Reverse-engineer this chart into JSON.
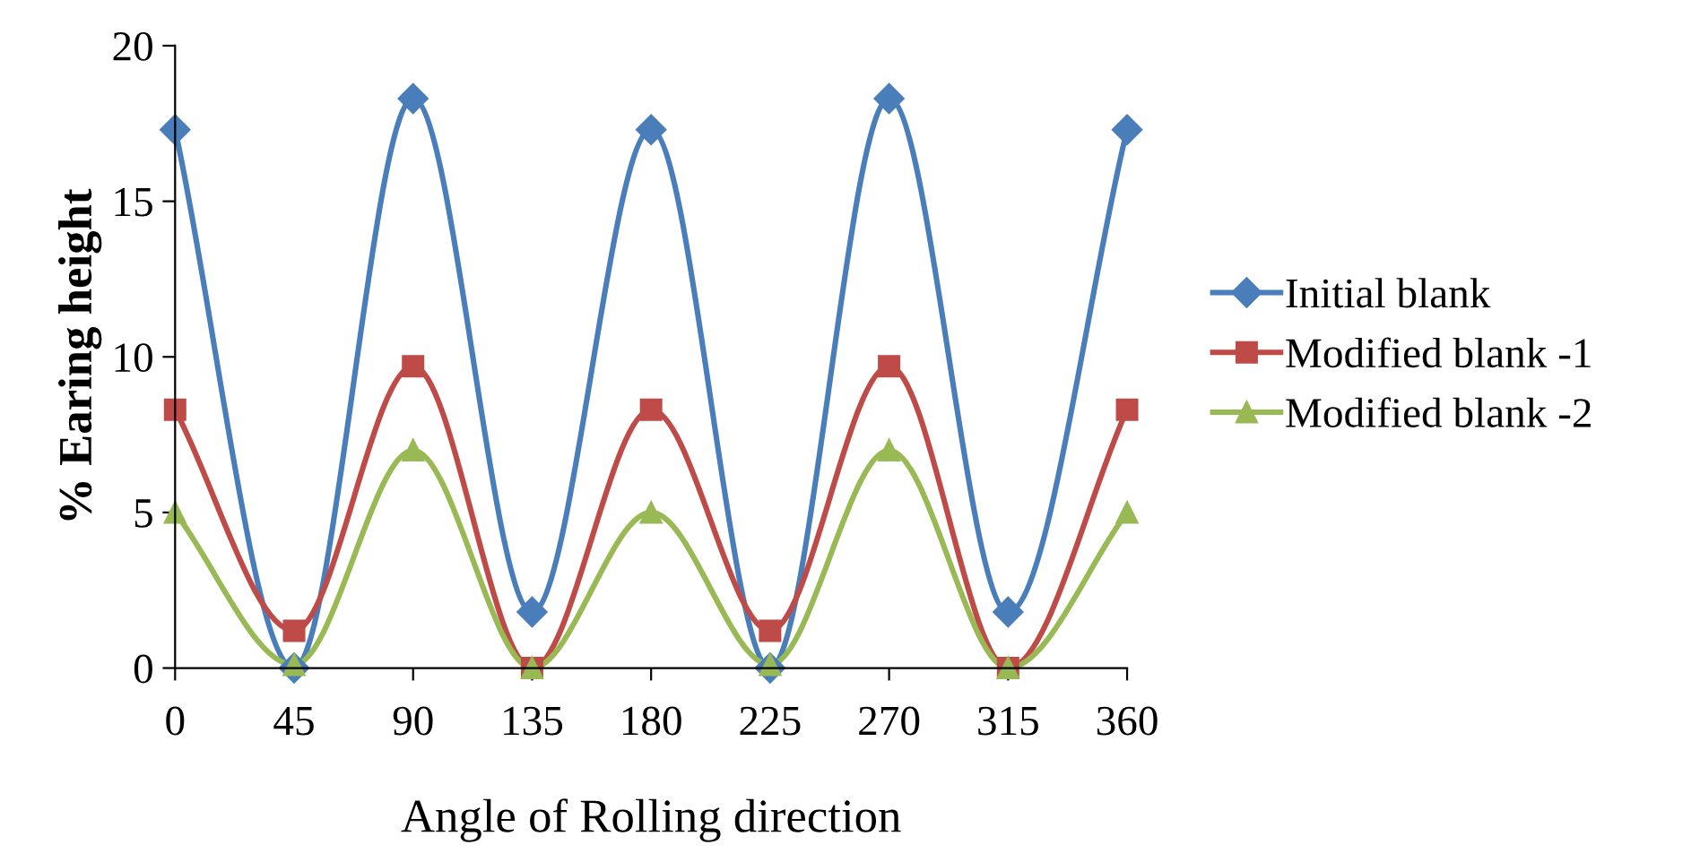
{
  "chart_data": {
    "type": "line",
    "xlabel": "Angle of Rolling direction",
    "ylabel": "% Earing height",
    "x": [
      0,
      45,
      90,
      135,
      180,
      225,
      270,
      315,
      360
    ],
    "xlim": [
      0,
      360
    ],
    "xticks": [
      0,
      45,
      90,
      135,
      180,
      225,
      270,
      315,
      360
    ],
    "ylim": [
      0,
      20
    ],
    "yticks": [
      0,
      5,
      10,
      15,
      20
    ],
    "grid": false,
    "legend": "right",
    "series": [
      {
        "name": "Initial blank",
        "color": "#4a7ebb",
        "marker": "diamond",
        "values": [
          17.3,
          0,
          18.3,
          1.8,
          17.3,
          0,
          18.3,
          1.8,
          17.3
        ]
      },
      {
        "name": "Modified blank -1",
        "color": "#be4b48",
        "marker": "square",
        "values": [
          8.3,
          1.2,
          9.7,
          0,
          8.3,
          1.2,
          9.7,
          0,
          8.3
        ]
      },
      {
        "name": "Modified blank -2",
        "color": "#98b954",
        "marker": "triangle",
        "values": [
          5,
          0.1,
          7,
          0,
          5,
          0.1,
          7,
          0,
          5
        ]
      }
    ]
  }
}
